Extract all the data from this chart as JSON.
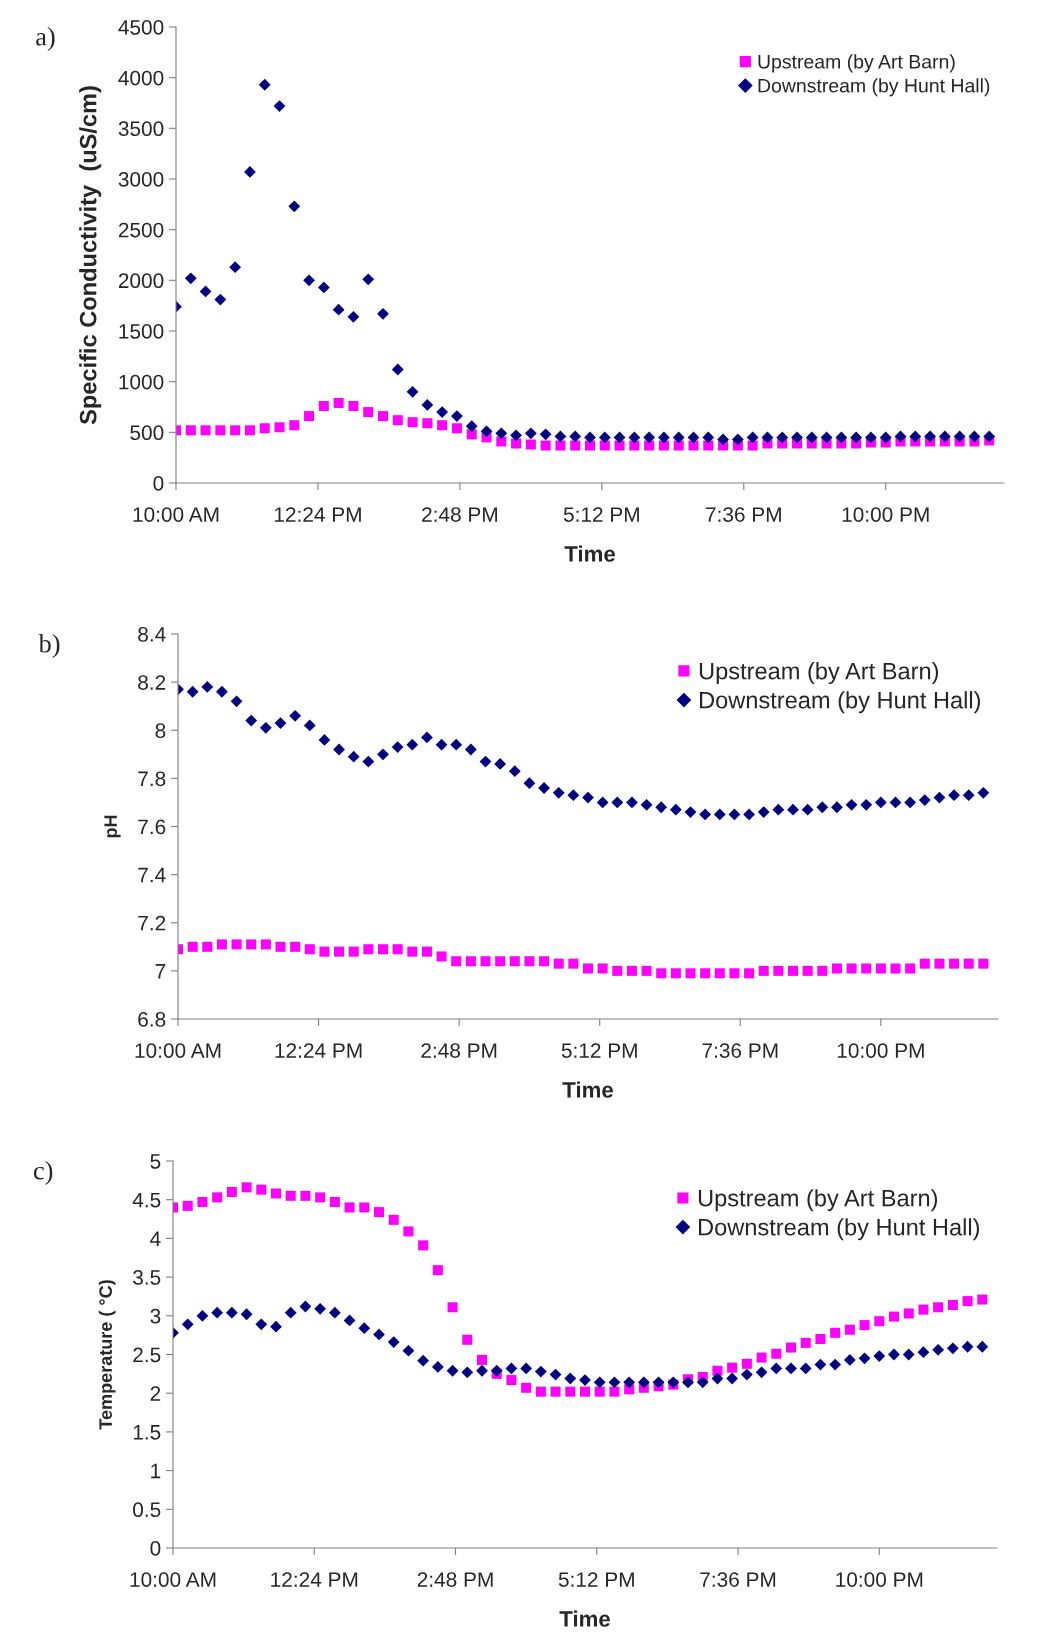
{
  "chart_data": [
    {
      "type": "scatter",
      "title": "a)",
      "xlabel": "Time",
      "ylabel": "Specific Conductivity  (uS/cm)",
      "x": [
        10,
        10.25,
        10.5,
        10.75,
        11,
        11.25,
        11.5,
        11.75,
        12,
        12.25,
        12.5,
        12.75,
        13,
        13.25,
        13.5,
        13.75,
        14,
        14.25,
        14.5,
        14.75,
        15,
        15.25,
        15.5,
        15.75,
        16,
        16.25,
        16.5,
        16.75,
        17,
        17.25,
        17.5,
        17.75,
        18,
        18.25,
        18.5,
        18.75,
        19,
        19.25,
        19.5,
        19.75,
        20,
        20.25,
        20.5,
        20.75,
        21,
        21.25,
        21.5,
        21.75,
        22,
        22.25,
        22.5,
        22.75,
        23,
        23.25,
        23.5,
        23.75
      ],
      "series": [
        {
          "name": "Upstream (by Art Barn)",
          "color": "#ff00ff",
          "marker": "square",
          "values": [
            520,
            520,
            520,
            520,
            520,
            520,
            540,
            550,
            570,
            660,
            760,
            790,
            760,
            700,
            660,
            620,
            600,
            590,
            570,
            540,
            480,
            450,
            410,
            390,
            380,
            370,
            370,
            370,
            370,
            370,
            370,
            370,
            370,
            370,
            370,
            370,
            370,
            370,
            370,
            370,
            390,
            390,
            390,
            390,
            390,
            390,
            390,
            400,
            400,
            410,
            410,
            410,
            410,
            410,
            410,
            420
          ]
        },
        {
          "name": "Downstream (by Hunt Hall)",
          "color": "#000080",
          "marker": "diamond",
          "values": [
            1740,
            2020,
            1890,
            1810,
            2130,
            3070,
            3930,
            3720,
            2730,
            2000,
            1930,
            1710,
            1640,
            2010,
            1670,
            1120,
            900,
            770,
            700,
            660,
            560,
            510,
            490,
            470,
            490,
            480,
            460,
            460,
            450,
            450,
            450,
            450,
            450,
            450,
            450,
            450,
            450,
            430,
            430,
            450,
            450,
            450,
            450,
            450,
            450,
            450,
            450,
            450,
            450,
            460,
            460,
            460,
            460,
            460,
            460,
            460
          ]
        }
      ],
      "xlim": [
        10,
        24
      ],
      "xticks": [
        {
          "value": 10,
          "label": "10:00 AM"
        },
        {
          "value": 12.4,
          "label": "12:24 PM"
        },
        {
          "value": 14.8,
          "label": "2:48 PM"
        },
        {
          "value": 17.2,
          "label": "5:12 PM"
        },
        {
          "value": 19.6,
          "label": "7:36 PM"
        },
        {
          "value": 22,
          "label": "10:00 PM"
        }
      ],
      "ylim": [
        0,
        4500
      ],
      "yticks": [
        0,
        500,
        1000,
        1500,
        2000,
        2500,
        3000,
        3500,
        4000,
        4500
      ],
      "legend": "top right",
      "grid": false
    },
    {
      "type": "scatter",
      "title": "b)",
      "xlabel": "Time",
      "ylabel": "pH",
      "x": [
        10,
        10.25,
        10.5,
        10.75,
        11,
        11.25,
        11.5,
        11.75,
        12,
        12.25,
        12.5,
        12.75,
        13,
        13.25,
        13.5,
        13.75,
        14,
        14.25,
        14.5,
        14.75,
        15,
        15.25,
        15.5,
        15.75,
        16,
        16.25,
        16.5,
        16.75,
        17,
        17.25,
        17.5,
        17.75,
        18,
        18.25,
        18.5,
        18.75,
        19,
        19.25,
        19.5,
        19.75,
        20,
        20.25,
        20.5,
        20.75,
        21,
        21.25,
        21.5,
        21.75,
        22,
        22.25,
        22.5,
        22.75,
        23,
        23.25,
        23.5,
        23.75
      ],
      "series": [
        {
          "name": "Upstream (by Art Barn)",
          "color": "#ff00ff",
          "marker": "square",
          "values": [
            7.09,
            7.1,
            7.1,
            7.11,
            7.11,
            7.11,
            7.11,
            7.1,
            7.1,
            7.09,
            7.08,
            7.08,
            7.08,
            7.09,
            7.09,
            7.09,
            7.08,
            7.08,
            7.06,
            7.04,
            7.04,
            7.04,
            7.04,
            7.04,
            7.04,
            7.04,
            7.03,
            7.03,
            7.01,
            7.01,
            7.0,
            7.0,
            7.0,
            6.99,
            6.99,
            6.99,
            6.99,
            6.99,
            6.99,
            6.99,
            7.0,
            7.0,
            7.0,
            7.0,
            7.0,
            7.01,
            7.01,
            7.01,
            7.01,
            7.01,
            7.01,
            7.03,
            7.03,
            7.03,
            7.03,
            7.03
          ]
        },
        {
          "name": "Downstream (by Hunt Hall)",
          "color": "#000080",
          "marker": "diamond",
          "values": [
            8.17,
            8.16,
            8.18,
            8.16,
            8.12,
            8.04,
            8.01,
            8.03,
            8.06,
            8.02,
            7.96,
            7.92,
            7.89,
            7.87,
            7.9,
            7.93,
            7.94,
            7.97,
            7.94,
            7.94,
            7.92,
            7.87,
            7.86,
            7.83,
            7.78,
            7.76,
            7.74,
            7.73,
            7.72,
            7.7,
            7.7,
            7.7,
            7.69,
            7.68,
            7.67,
            7.66,
            7.65,
            7.65,
            7.65,
            7.65,
            7.66,
            7.67,
            7.67,
            7.67,
            7.68,
            7.68,
            7.69,
            7.69,
            7.7,
            7.7,
            7.7,
            7.71,
            7.72,
            7.73,
            7.73,
            7.74
          ]
        }
      ],
      "xlim": [
        10,
        24
      ],
      "xticks": [
        {
          "value": 10,
          "label": "10:00 AM"
        },
        {
          "value": 12.4,
          "label": "12:24 PM"
        },
        {
          "value": 14.8,
          "label": "2:48 PM"
        },
        {
          "value": 17.2,
          "label": "5:12 PM"
        },
        {
          "value": 19.6,
          "label": "7:36 PM"
        },
        {
          "value": 22,
          "label": "10:00 PM"
        }
      ],
      "ylim": [
        6.8,
        8.4
      ],
      "yticks": [
        6.8,
        7,
        7.2,
        7.4,
        7.6,
        7.8,
        8,
        8.2,
        8.4
      ],
      "legend": "top right",
      "grid": false
    },
    {
      "type": "scatter",
      "title": "c)",
      "xlabel": "Time",
      "ylabel": "Temperature ( °C)",
      "x": [
        10,
        10.25,
        10.5,
        10.75,
        11,
        11.25,
        11.5,
        11.75,
        12,
        12.25,
        12.5,
        12.75,
        13,
        13.25,
        13.5,
        13.75,
        14,
        14.25,
        14.5,
        14.75,
        15,
        15.25,
        15.5,
        15.75,
        16,
        16.25,
        16.5,
        16.75,
        17,
        17.25,
        17.5,
        17.75,
        18,
        18.25,
        18.5,
        18.75,
        19,
        19.25,
        19.5,
        19.75,
        20,
        20.25,
        20.5,
        20.75,
        21,
        21.25,
        21.5,
        21.75,
        22,
        22.25,
        22.5,
        22.75,
        23,
        23.25,
        23.5,
        23.75
      ],
      "series": [
        {
          "name": "Upstream (by Art Barn)",
          "color": "#ff00ff",
          "marker": "square",
          "values": [
            4.4,
            4.42,
            4.47,
            4.53,
            4.6,
            4.66,
            4.63,
            4.58,
            4.55,
            4.55,
            4.53,
            4.47,
            4.4,
            4.4,
            4.34,
            4.24,
            4.09,
            3.91,
            3.59,
            3.11,
            2.69,
            2.43,
            2.25,
            2.17,
            2.07,
            2.02,
            2.02,
            2.02,
            2.02,
            2.02,
            2.02,
            2.05,
            2.07,
            2.09,
            2.11,
            2.18,
            2.21,
            2.29,
            2.33,
            2.38,
            2.46,
            2.51,
            2.59,
            2.65,
            2.7,
            2.78,
            2.82,
            2.88,
            2.93,
            2.99,
            3.03,
            3.08,
            3.11,
            3.14,
            3.19,
            3.21
          ]
        },
        {
          "name": "Downstream (by Hunt Hall)",
          "color": "#000080",
          "marker": "diamond",
          "values": [
            2.78,
            2.89,
            3.0,
            3.04,
            3.04,
            3.02,
            2.89,
            2.86,
            3.04,
            3.12,
            3.09,
            3.04,
            2.94,
            2.84,
            2.76,
            2.66,
            2.55,
            2.42,
            2.34,
            2.29,
            2.27,
            2.29,
            2.29,
            2.32,
            2.32,
            2.28,
            2.24,
            2.19,
            2.17,
            2.14,
            2.14,
            2.14,
            2.14,
            2.14,
            2.14,
            2.14,
            2.14,
            2.19,
            2.19,
            2.24,
            2.27,
            2.32,
            2.32,
            2.32,
            2.37,
            2.37,
            2.43,
            2.45,
            2.48,
            2.5,
            2.5,
            2.53,
            2.56,
            2.58,
            2.6,
            2.6
          ]
        }
      ],
      "xlim": [
        10,
        24
      ],
      "xticks": [
        {
          "value": 10,
          "label": "10:00 AM"
        },
        {
          "value": 12.4,
          "label": "12:24 PM"
        },
        {
          "value": 14.8,
          "label": "2:48 PM"
        },
        {
          "value": 17.2,
          "label": "5:12 PM"
        },
        {
          "value": 19.6,
          "label": "7:36 PM"
        },
        {
          "value": 22,
          "label": "10:00 PM"
        }
      ],
      "ylim": [
        0,
        5
      ],
      "yticks": [
        0,
        0.5,
        1,
        1.5,
        2,
        2.5,
        3,
        3.5,
        4,
        4.5,
        5
      ],
      "legend": "top right",
      "grid": false
    }
  ]
}
